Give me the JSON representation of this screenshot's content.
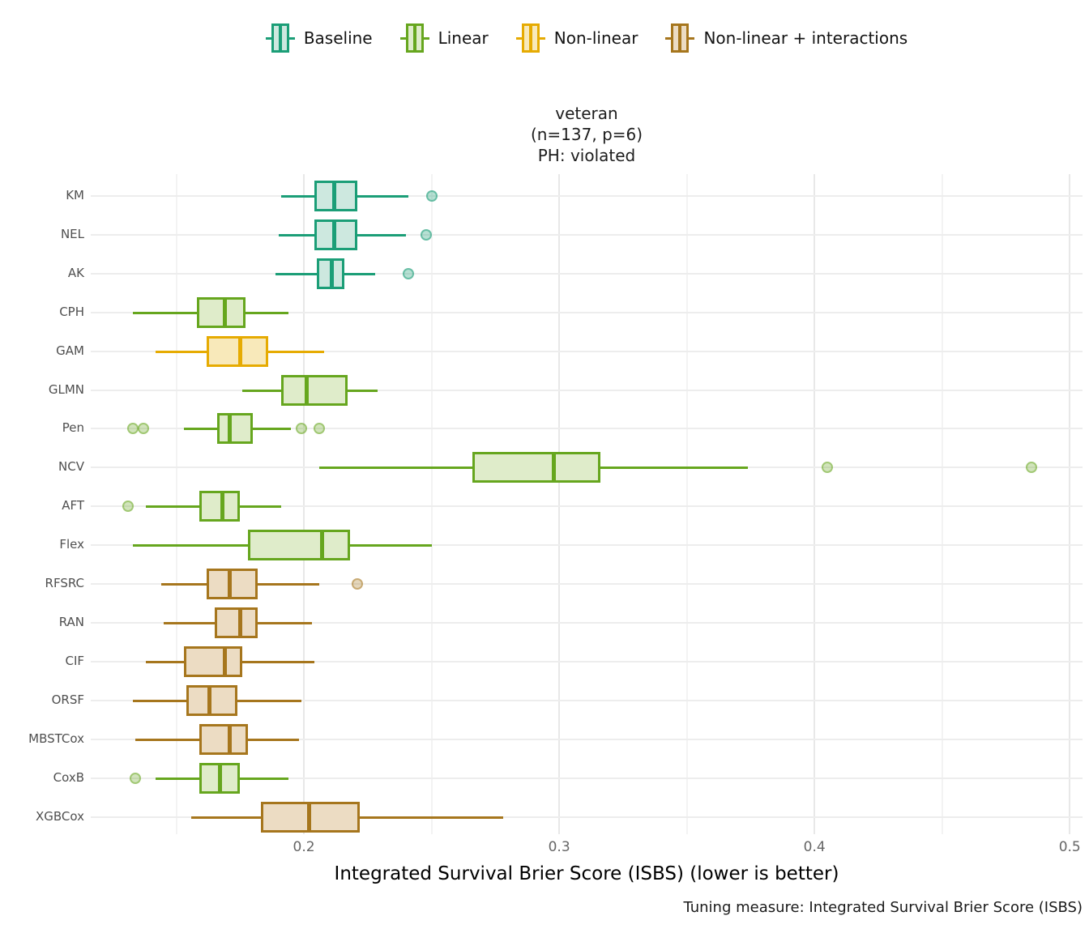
{
  "title": {
    "line1": "veteran",
    "line2": "(n=137, p=6)",
    "line3": "PH: violated"
  },
  "xlabel": "Integrated Survival Brier Score (ISBS) (lower is better)",
  "caption": "Tuning measure: Integrated Survival Brier Score (ISBS)",
  "chart_data": {
    "type": "boxplot",
    "orientation": "horizontal",
    "title": "veteran (n=137, p=6) PH: violated",
    "xlabel": "Integrated Survival Brier Score (ISBS) (lower is better)",
    "caption": "Tuning measure: Integrated Survival Brier Score (ISBS)",
    "grid": true,
    "legend_position": "top",
    "xlim": [
      0.1165,
      0.505
    ],
    "x_major_ticks": [
      {
        "v": 0.2,
        "label": "0.2"
      },
      {
        "v": 0.3,
        "label": "0.3"
      },
      {
        "v": 0.4,
        "label": "0.4"
      },
      {
        "v": 0.5,
        "label": "0.5"
      }
    ],
    "x_minor_ticks": [
      0.15,
      0.25,
      0.35,
      0.45
    ],
    "groups": {
      "baseline": {
        "label": "Baseline",
        "stroke": "#1b9e77",
        "fill": "#cde8df",
        "dot_fill": "#1b9e7752",
        "dot_rim": "#1b9e7780"
      },
      "linear": {
        "label": "Linear",
        "stroke": "#66a61e",
        "fill": "#dfecca",
        "dot_fill": "#66a61e4d",
        "dot_rim": "#66a61e73"
      },
      "nonlinear": {
        "label": "Non-linear",
        "stroke": "#e6ab02",
        "fill": "#f8e9ba",
        "dot_fill": "#e6ab024d",
        "dot_rim": "#e6ab0273"
      },
      "nonlinear_interactions": {
        "label": "Non-linear + interactions",
        "stroke": "#a6761d",
        "fill": "#ecdcc3",
        "dot_fill": "#a6761d4d",
        "dot_rim": "#a6761d73"
      }
    },
    "models": [
      {
        "label": "KM",
        "group": "baseline",
        "whisker_lo": 0.191,
        "q1": 0.204,
        "median": 0.212,
        "q3": 0.221,
        "whisker_hi": 0.241,
        "outliers": [
          0.25
        ]
      },
      {
        "label": "NEL",
        "group": "baseline",
        "whisker_lo": 0.19,
        "q1": 0.204,
        "median": 0.212,
        "q3": 0.221,
        "whisker_hi": 0.24,
        "outliers": [
          0.248
        ]
      },
      {
        "label": "AK",
        "group": "baseline",
        "whisker_lo": 0.189,
        "q1": 0.205,
        "median": 0.211,
        "q3": 0.216,
        "whisker_hi": 0.228,
        "outliers": [
          0.241
        ]
      },
      {
        "label": "CPH",
        "group": "linear",
        "whisker_lo": 0.133,
        "q1": 0.158,
        "median": 0.169,
        "q3": 0.177,
        "whisker_hi": 0.194,
        "outliers": []
      },
      {
        "label": "GAM",
        "group": "nonlinear",
        "whisker_lo": 0.142,
        "q1": 0.162,
        "median": 0.175,
        "q3": 0.186,
        "whisker_hi": 0.208,
        "outliers": []
      },
      {
        "label": "GLMN",
        "group": "linear",
        "whisker_lo": 0.176,
        "q1": 0.191,
        "median": 0.201,
        "q3": 0.217,
        "whisker_hi": 0.229,
        "outliers": []
      },
      {
        "label": "Pen",
        "group": "linear",
        "whisker_lo": 0.153,
        "q1": 0.166,
        "median": 0.171,
        "q3": 0.18,
        "whisker_hi": 0.195,
        "outliers": [
          0.133,
          0.137,
          0.199,
          0.206
        ]
      },
      {
        "label": "NCV",
        "group": "linear",
        "whisker_lo": 0.206,
        "q1": 0.266,
        "median": 0.298,
        "q3": 0.316,
        "whisker_hi": 0.374,
        "outliers": [
          0.405,
          0.485
        ]
      },
      {
        "label": "AFT",
        "group": "linear",
        "whisker_lo": 0.138,
        "q1": 0.159,
        "median": 0.168,
        "q3": 0.175,
        "whisker_hi": 0.191,
        "outliers": [
          0.131
        ]
      },
      {
        "label": "Flex",
        "group": "linear",
        "whisker_lo": 0.133,
        "q1": 0.178,
        "median": 0.207,
        "q3": 0.218,
        "whisker_hi": 0.25,
        "outliers": []
      },
      {
        "label": "RFSRC",
        "group": "nonlinear_interactions",
        "whisker_lo": 0.144,
        "q1": 0.162,
        "median": 0.171,
        "q3": 0.182,
        "whisker_hi": 0.206,
        "outliers": [
          0.221
        ]
      },
      {
        "label": "RAN",
        "group": "nonlinear_interactions",
        "whisker_lo": 0.145,
        "q1": 0.165,
        "median": 0.175,
        "q3": 0.182,
        "whisker_hi": 0.203,
        "outliers": []
      },
      {
        "label": "CIF",
        "group": "nonlinear_interactions",
        "whisker_lo": 0.138,
        "q1": 0.153,
        "median": 0.169,
        "q3": 0.176,
        "whisker_hi": 0.204,
        "outliers": []
      },
      {
        "label": "ORSF",
        "group": "nonlinear_interactions",
        "whisker_lo": 0.133,
        "q1": 0.154,
        "median": 0.163,
        "q3": 0.174,
        "whisker_hi": 0.199,
        "outliers": []
      },
      {
        "label": "MBSTCox",
        "group": "nonlinear_interactions",
        "whisker_lo": 0.134,
        "q1": 0.159,
        "median": 0.171,
        "q3": 0.178,
        "whisker_hi": 0.198,
        "outliers": []
      },
      {
        "label": "CoxB",
        "group": "linear",
        "whisker_lo": 0.142,
        "q1": 0.159,
        "median": 0.167,
        "q3": 0.175,
        "whisker_hi": 0.194,
        "outliers": [
          0.134
        ]
      },
      {
        "label": "XGBCox",
        "group": "nonlinear_interactions",
        "whisker_lo": 0.156,
        "q1": 0.183,
        "median": 0.202,
        "q3": 0.222,
        "whisker_hi": 0.278,
        "outliers": []
      }
    ]
  }
}
